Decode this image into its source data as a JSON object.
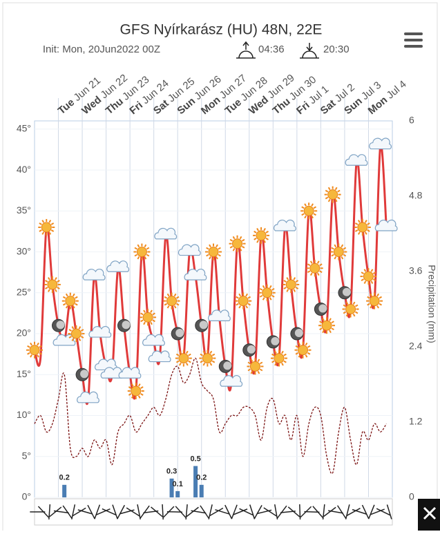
{
  "chart_data": {
    "type": "line",
    "title": "GFS Nyírkarász (HU) 48N, 22E",
    "subtitle": "Init: Mon, 20Jun2022 00Z",
    "sunrise": "04:36",
    "sunset": "20:30",
    "y2_label": "Precipitation (mm)",
    "days": [
      {
        "weekday": "Tue",
        "date": "Jun 21"
      },
      {
        "weekday": "Wed",
        "date": "Jun 22"
      },
      {
        "weekday": "Thu",
        "date": "Jun 23"
      },
      {
        "weekday": "Fri",
        "date": "Jun 24"
      },
      {
        "weekday": "Sat",
        "date": "Jun 25"
      },
      {
        "weekday": "Sun",
        "date": "Jun 26"
      },
      {
        "weekday": "Mon",
        "date": "Jun 27"
      },
      {
        "weekday": "Tue",
        "date": "Jun 28"
      },
      {
        "weekday": "Wed",
        "date": "Jun 29"
      },
      {
        "weekday": "Thu",
        "date": "Jun 30"
      },
      {
        "weekday": "Fri",
        "date": "Jul 1"
      },
      {
        "weekday": "Sat",
        "date": "Jul 2"
      },
      {
        "weekday": "Sun",
        "date": "Jul 3"
      },
      {
        "weekday": "Mon",
        "date": "Jul 4"
      }
    ],
    "ylim": [
      0,
      46
    ],
    "yticks": [
      {
        "value": 0,
        "label": "0°"
      },
      {
        "value": 5,
        "label": "5°"
      },
      {
        "value": 10,
        "label": "10°"
      },
      {
        "value": 15,
        "label": "15°"
      },
      {
        "value": 20,
        "label": "20°"
      },
      {
        "value": 25,
        "label": "25°"
      },
      {
        "value": 30,
        "label": "30°"
      },
      {
        "value": 35,
        "label": "35°"
      },
      {
        "value": 40,
        "label": "40°"
      },
      {
        "value": 45,
        "label": "45°"
      }
    ],
    "y2lim": [
      0,
      6
    ],
    "y2ticks": [
      0,
      1.2,
      2.4,
      3.6,
      4.8,
      6
    ],
    "grid": true,
    "series": [
      {
        "color": "#e03a3a",
        "dash": false,
        "values": [
          18,
          17,
          33,
          26,
          21,
          19,
          24,
          20,
          15,
          12,
          27,
          20,
          16,
          15,
          28,
          21,
          15,
          13,
          30,
          22,
          19,
          17,
          32,
          24,
          20,
          17,
          30,
          27,
          21,
          17,
          30,
          22,
          16,
          14,
          31,
          24,
          18,
          16,
          32,
          25,
          19,
          17,
          33,
          26,
          20,
          18,
          35,
          28,
          23,
          21,
          37,
          30,
          25,
          23,
          41,
          33,
          27,
          24,
          43,
          33
        ]
      },
      {
        "color": "#7a1010",
        "dash": true,
        "values": [
          9,
          10,
          8,
          9,
          12,
          15,
          6,
          5,
          6,
          5,
          7,
          6,
          7,
          4,
          8,
          9,
          10,
          8,
          9,
          10,
          11,
          10,
          12,
          15,
          16,
          14,
          15,
          17,
          14,
          13,
          12,
          8,
          9,
          10,
          10,
          11,
          11,
          10,
          7,
          11,
          12,
          9,
          10,
          7,
          10,
          5,
          9,
          11,
          10,
          5,
          3,
          8,
          11,
          7,
          4,
          8,
          7,
          9,
          8,
          9
        ]
      },
      {
        "type": "bar",
        "axis": "y2",
        "color": "#4a7db3",
        "values": [
          0,
          0,
          0,
          0,
          0,
          0.2,
          0,
          0,
          0,
          0,
          0,
          0,
          0,
          0,
          0,
          0,
          0,
          0,
          0,
          0,
          0,
          0,
          0,
          0.3,
          0.1,
          0,
          0,
          0.5,
          0.2,
          0,
          0,
          0,
          0,
          0,
          0,
          0,
          0,
          0,
          0,
          0,
          0,
          0,
          0,
          0,
          0,
          0,
          0,
          0,
          0,
          0,
          0,
          0,
          0,
          0,
          0,
          0,
          0,
          0,
          0,
          0
        ],
        "value_labels": [
          null,
          null,
          null,
          null,
          null,
          "0.2",
          null,
          null,
          null,
          null,
          null,
          null,
          null,
          null,
          null,
          null,
          null,
          null,
          null,
          null,
          null,
          null,
          null,
          "0.3",
          "0.1",
          null,
          null,
          "0.5",
          "0.2",
          null,
          null,
          null,
          null,
          null,
          null,
          null,
          null,
          null,
          null,
          null,
          null,
          null,
          null,
          null,
          null,
          null,
          null,
          null,
          null,
          null,
          null,
          null,
          null,
          null,
          null,
          null,
          null,
          null,
          null,
          null
        ]
      }
    ],
    "symbols": [
      "sun",
      null,
      "sun",
      "sun",
      "moon",
      "cloud",
      "sun",
      "sun",
      "moon",
      "cloud",
      "cloud",
      "cloud",
      "cloud",
      "cloud",
      "cloud",
      "moon",
      "cloud",
      "sun",
      "sun",
      "sun",
      "cloud",
      "cloud",
      "cloud",
      "sun",
      "moon",
      "sun",
      "cloud",
      "cloud",
      "moon",
      "sun",
      "sun",
      "cloud",
      "moon",
      "cloud",
      "sun",
      "sun",
      "moon",
      "sun",
      "sun",
      "sun",
      "moon",
      "sun",
      "cloud",
      "sun",
      "moon",
      "sun",
      "sun",
      "sun",
      "moon",
      "sun",
      "sun",
      "sun",
      "moon",
      "sun",
      "cloud",
      "sun",
      "sun",
      "sun",
      "cloud",
      "cloud"
    ]
  }
}
